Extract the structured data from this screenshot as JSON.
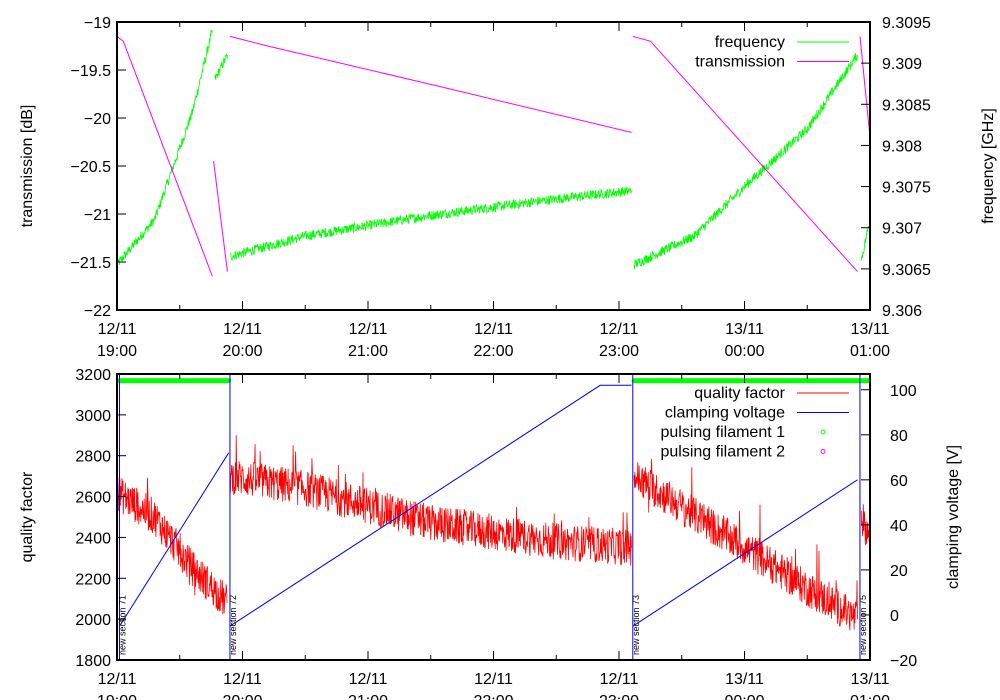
{
  "chart_data": [
    {
      "type": "line",
      "xlabel": "",
      "ylabel": "transmission [dB]",
      "y2label": "frequency [GHz]",
      "x_unit": "hours since 12/11 19:00",
      "xlim": [
        0,
        6
      ],
      "ylim": [
        -22,
        -19
      ],
      "y2lim": [
        9.306,
        9.3095
      ],
      "x_ticks": [
        {
          "d": "12/11",
          "t": "19:00"
        },
        {
          "d": "12/11",
          "t": "20:00"
        },
        {
          "d": "12/11",
          "t": "21:00"
        },
        {
          "d": "12/11",
          "t": "22:00"
        },
        {
          "d": "12/11",
          "t": "23:00"
        },
        {
          "d": "13/11",
          "t": "00:00"
        },
        {
          "d": "13/11",
          "t": "01:00"
        }
      ],
      "y_ticks": [
        "-22",
        "-21.5",
        "-21",
        "-20.5",
        "-20",
        "-19.5",
        "-19"
      ],
      "y2_ticks": [
        "9.306",
        "9.3065",
        "9.307",
        "9.3075",
        "9.308",
        "9.3085",
        "9.309",
        "9.3095"
      ],
      "legend_position": "top-right",
      "series": [
        {
          "name": "frequency",
          "axis": "y2",
          "color": "#00ff00",
          "noisy": true,
          "segments": [
            [
              [
                0,
                9.30655
              ],
              [
                0.3,
                9.3071
              ],
              [
                0.6,
                9.3084
              ],
              [
                0.76,
                9.3094
              ]
            ],
            [
              [
                0.78,
                9.3088
              ],
              [
                0.88,
                9.3091
              ]
            ],
            [
              [
                0.9,
                9.30665
              ],
              [
                1.5,
                9.3069
              ],
              [
                2.5,
                9.30715
              ],
              [
                3.5,
                9.30735
              ],
              [
                4.1,
                9.30745
              ]
            ],
            [
              [
                4.12,
                9.30655
              ],
              [
                4.6,
                9.3069
              ],
              [
                5.0,
                9.3075
              ],
              [
                5.5,
                9.3082
              ],
              [
                5.9,
                9.3091
              ]
            ],
            [
              [
                5.93,
                9.3066
              ],
              [
                6.0,
                9.3071
              ]
            ]
          ]
        },
        {
          "name": "transmission",
          "axis": "y",
          "color": "#ff00ff",
          "noisy": false,
          "segments": [
            [
              [
                0,
                -19.15
              ],
              [
                0.05,
                -19.2
              ],
              [
                0.76,
                -21.65
              ]
            ],
            [
              [
                0.77,
                -20.45
              ],
              [
                0.88,
                -21.6
              ]
            ],
            [
              [
                0.9,
                -19.15
              ],
              [
                1.2,
                -19.25
              ],
              [
                2.5,
                -19.65
              ],
              [
                4.1,
                -20.15
              ]
            ],
            [
              [
                4.11,
                -19.15
              ],
              [
                4.25,
                -19.2
              ],
              [
                5.9,
                -21.6
              ]
            ],
            [
              [
                5.92,
                -19.15
              ],
              [
                6.0,
                -20.2
              ]
            ]
          ]
        }
      ]
    },
    {
      "type": "line",
      "xlabel": "",
      "ylabel": "quality factor",
      "y2label": "clamping voltage [V]",
      "x_unit": "hours since 12/11 19:00",
      "xlim": [
        0,
        6
      ],
      "ylim": [
        1800,
        3200
      ],
      "y2lim": [
        -20,
        107
      ],
      "x_ticks": [
        {
          "d": "12/11",
          "t": "19:00"
        },
        {
          "d": "12/11",
          "t": "20:00"
        },
        {
          "d": "12/11",
          "t": "21:00"
        },
        {
          "d": "12/11",
          "t": "22:00"
        },
        {
          "d": "12/11",
          "t": "23:00"
        },
        {
          "d": "13/11",
          "t": "00:00"
        },
        {
          "d": "13/11",
          "t": "01:00"
        }
      ],
      "y_ticks": [
        "1800",
        "2000",
        "2200",
        "2400",
        "2600",
        "2800",
        "3000",
        "3200"
      ],
      "y2_ticks": [
        "-20",
        "0",
        "20",
        "40",
        "60",
        "80",
        "100"
      ],
      "legend_position": "top-right",
      "series": [
        {
          "name": "quality factor",
          "axis": "y",
          "color": "#ff0000",
          "noisy": true,
          "segments": [
            [
              [
                0,
                2620
              ],
              [
                0.3,
                2500
              ],
              [
                0.6,
                2250
              ],
              [
                0.88,
                2080
              ]
            ],
            [
              [
                0.9,
                2700
              ],
              [
                1.5,
                2640
              ],
              [
                2.5,
                2470
              ],
              [
                3.5,
                2380
              ],
              [
                4.1,
                2350
              ]
            ],
            [
              [
                4.12,
                2700
              ],
              [
                4.5,
                2550
              ],
              [
                5.0,
                2350
              ],
              [
                5.5,
                2150
              ],
              [
                5.9,
                2000
              ]
            ],
            [
              [
                5.93,
                2500
              ],
              [
                6.0,
                2400
              ]
            ]
          ]
        },
        {
          "name": "clamping voltage",
          "axis": "y2",
          "color": "#0000ff",
          "noisy": false,
          "segments": [
            [
              [
                0.02,
                -5
              ],
              [
                0.89,
                72
              ]
            ],
            [
              [
                0.9,
                -5
              ],
              [
                3.85,
                102
              ],
              [
                4.1,
                102
              ]
            ],
            [
              [
                4.11,
                -5
              ],
              [
                5.9,
                60
              ]
            ]
          ]
        },
        {
          "name": "pulsing filament 1",
          "axis": "y2",
          "color": "#00ff00",
          "marker": "point",
          "ranges": [
            [
              0.02,
              0.9,
              104
            ],
            [
              4.12,
              6.0,
              104
            ]
          ]
        },
        {
          "name": "pulsing filament 2",
          "axis": "y2",
          "color": "#ff00ff",
          "marker": "point",
          "ranges": []
        }
      ],
      "annotations": [
        {
          "x": 0.02,
          "text": "new section 71"
        },
        {
          "x": 0.9,
          "text": "new section 72"
        },
        {
          "x": 4.11,
          "text": "new section 73"
        },
        {
          "x": 5.92,
          "text": "new section 75"
        }
      ]
    }
  ]
}
